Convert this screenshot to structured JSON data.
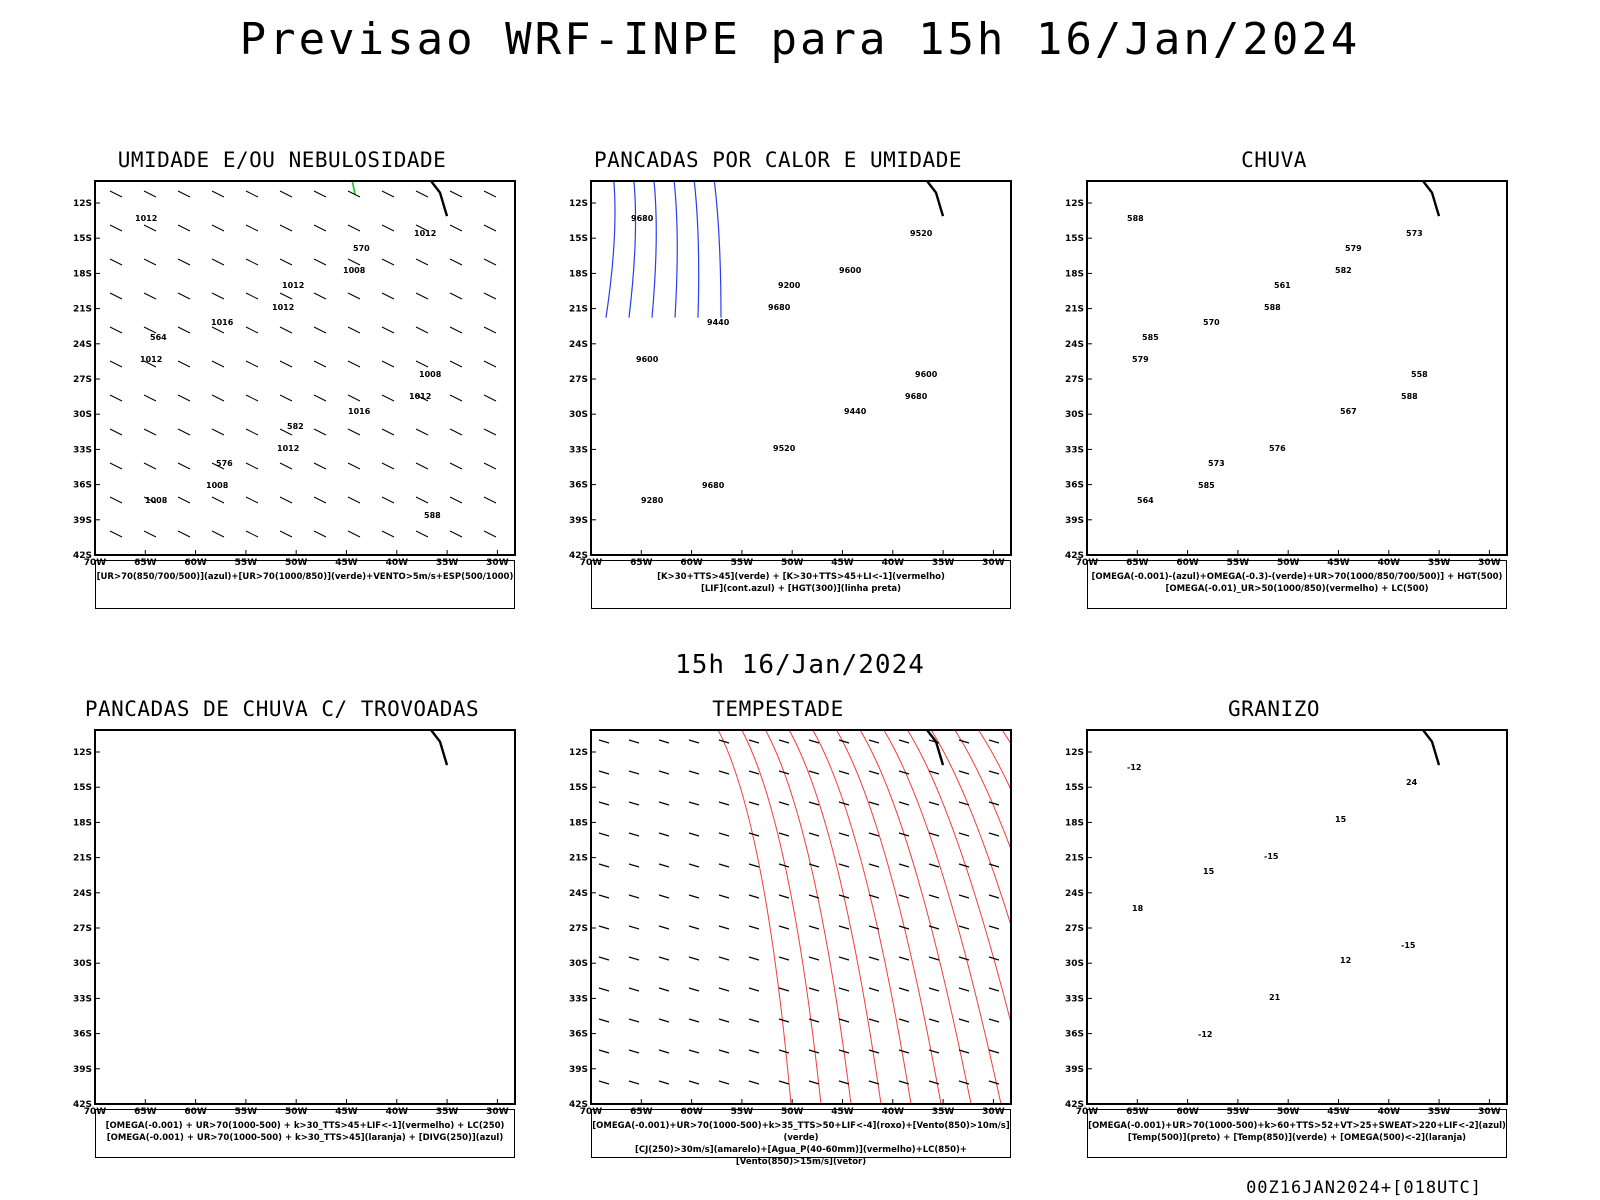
{
  "main_title": "Previsao WRF-INPE  para 15h 16/Jan/2024",
  "mid_title": "15h 16/Jan/2024",
  "footer": "00Z16JAN2024+[018UTC]",
  "lat_labels": [
    "12S",
    "15S",
    "18S",
    "21S",
    "24S",
    "27S",
    "30S",
    "33S",
    "36S",
    "39S",
    "42S"
  ],
  "lon_labels": [
    "70W",
    "65W",
    "60W",
    "55W",
    "50W",
    "45W",
    "40W",
    "35W",
    "30W"
  ],
  "colors": {
    "red": "#f23c3c",
    "green": "#18c818",
    "blue": "#2a3cf0",
    "lavender": "#b8b4f0",
    "teal": "#245a50",
    "yellow": "#e6d83c",
    "orange": "#e88a20"
  },
  "panels": [
    {
      "id": "umidade",
      "title": "UMIDADE E/OU NEBULOSIDADE",
      "legend": [
        "[UR>70(850/700/500)](azul)+[UR>70(1000/850)](verde)+VENTO>5m/s+ESP(500/1000)"
      ],
      "contour_labels": [
        "1012",
        "1012",
        "1012",
        "1008",
        "1008",
        "1012",
        "1012",
        "1012",
        "1016",
        "1016",
        "1008",
        "1012",
        "1008",
        "576",
        "570",
        "564",
        "582",
        "588"
      ]
    },
    {
      "id": "pancadas-calor",
      "title": "PANCADAS POR CALOR E UMIDADE",
      "legend": [
        "[K>30+TTS>45](verde) + [K>30+TTS>45+LI<-1](vermelho)",
        "[LIF](cont.azul) + [HGT(300)](linha preta)"
      ],
      "contour_labels": [
        "9680",
        "9680",
        "9680",
        "9680",
        "9600",
        "9600",
        "9520",
        "9520",
        "9440",
        "9440",
        "9280",
        "9200",
        "9600"
      ]
    },
    {
      "id": "chuva",
      "title": "CHUVA",
      "legend": [
        "[OMEGA(-0.001)-(azul)+OMEGA(-0.3)-(verde)+UR>70(1000/850/700/500)] + HGT(500)",
        "[OMEGA(-0.01)_UR>50(1000/850)(vermelho) + LC(500)"
      ],
      "contour_labels": [
        "588",
        "588",
        "588",
        "585",
        "582",
        "579",
        "576",
        "573",
        "570",
        "567",
        "564",
        "561",
        "558",
        "573",
        "579",
        "585"
      ]
    },
    {
      "id": "pancadas-trovoadas",
      "title": "PANCADAS DE CHUVA C/ TROVOADAS",
      "legend": [
        "[OMEGA(-0.001) + UR>70(1000-500) + k>30_TTS>45+LIF<-1](vermelho) + LC(250)",
        "[OMEGA(-0.001) + UR>70(1000-500) + k>30_TTS>45](laranja) + [DIVG(250)](azul)"
      ],
      "contour_labels": []
    },
    {
      "id": "tempestade",
      "title": "TEMPESTADE",
      "legend": [
        "[OMEGA(-0.001)+UR>70(1000-500)+k>35_TTS>50+LIF<-4](roxo)+[Vento(850)>10m/s](verde)",
        "[CJ(250)>30m/s](amarelo)+[Agua_P(40-60mm)](vermelho)+LC(850)+[Vento(850)>15m/s](vetor)"
      ],
      "contour_labels": []
    },
    {
      "id": "granizo",
      "title": "GRANIZO",
      "legend": [
        "[OMEGA(-0.001)+UR>70(1000-500)+k>60+TTS>52+VT>25+SWEAT>220+LIF<-2](azul)",
        "[Temp(500)](preto) + [Temp(850)](verde) + [OMEGA(500)<-2](laranja)"
      ],
      "contour_labels": [
        "-12",
        "-15",
        "-15",
        "-12",
        "15",
        "18",
        "21",
        "24",
        "15",
        "12"
      ]
    }
  ]
}
